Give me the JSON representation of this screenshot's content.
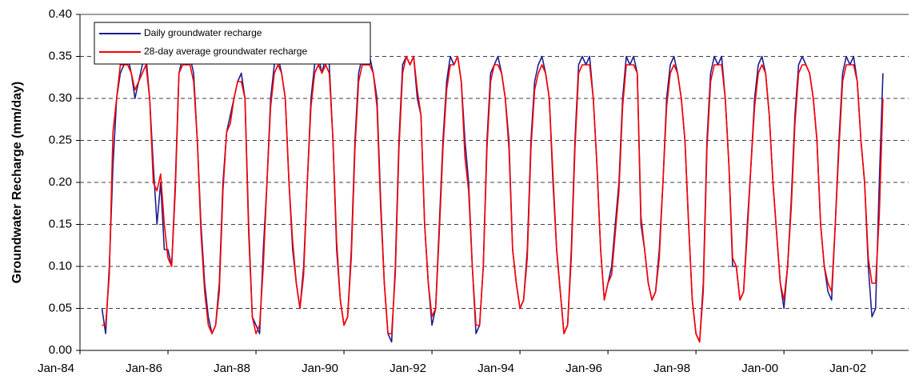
{
  "chart_data": {
    "type": "line",
    "y_label": "Groundwater Recharge (mm/day)",
    "x": [
      "1984-07",
      "1984-08",
      "1984-09",
      "1984-10",
      "1984-11",
      "1984-12",
      "1985-01",
      "1985-02",
      "1985-03",
      "1985-04",
      "1985-05",
      "1985-06",
      "1985-07",
      "1985-08",
      "1985-09",
      "1985-10",
      "1985-11",
      "1985-12",
      "1986-01",
      "1986-02",
      "1986-03",
      "1986-04",
      "1986-05",
      "1986-06",
      "1986-07",
      "1986-08",
      "1986-09",
      "1986-10",
      "1986-11",
      "1986-12",
      "1987-01",
      "1987-02",
      "1987-03",
      "1987-04",
      "1987-05",
      "1987-06",
      "1987-07",
      "1987-08",
      "1987-09",
      "1987-10",
      "1987-11",
      "1987-12",
      "1988-01",
      "1988-02",
      "1988-03",
      "1988-04",
      "1988-05",
      "1988-06",
      "1988-07",
      "1988-08",
      "1988-09",
      "1988-10",
      "1988-11",
      "1988-12",
      "1989-01",
      "1989-02",
      "1989-03",
      "1989-04",
      "1989-05",
      "1989-06",
      "1989-07",
      "1989-08",
      "1989-09",
      "1989-10",
      "1989-11",
      "1989-12",
      "1990-01",
      "1990-02",
      "1990-03",
      "1990-04",
      "1990-05",
      "1990-06",
      "1990-07",
      "1990-08",
      "1990-09",
      "1990-10",
      "1990-11",
      "1990-12",
      "1991-01",
      "1991-02",
      "1991-03",
      "1991-04",
      "1991-05",
      "1991-06",
      "1991-07",
      "1991-08",
      "1991-09",
      "1991-10",
      "1991-11",
      "1991-12",
      "1992-01",
      "1992-02",
      "1992-03",
      "1992-04",
      "1992-05",
      "1992-06",
      "1992-07",
      "1992-08",
      "1992-09",
      "1992-10",
      "1992-11",
      "1992-12",
      "1993-01",
      "1993-02",
      "1993-03",
      "1993-04",
      "1993-05",
      "1993-06",
      "1993-07",
      "1993-08",
      "1993-09",
      "1993-10",
      "1993-11",
      "1993-12",
      "1994-01",
      "1994-02",
      "1994-03",
      "1994-04",
      "1994-05",
      "1994-06",
      "1994-07",
      "1994-08",
      "1994-09",
      "1994-10",
      "1994-11",
      "1994-12",
      "1995-01",
      "1995-02",
      "1995-03",
      "1995-04",
      "1995-05",
      "1995-06",
      "1995-07",
      "1995-08",
      "1995-09",
      "1995-10",
      "1995-11",
      "1995-12",
      "1996-01",
      "1996-02",
      "1996-03",
      "1996-04",
      "1996-05",
      "1996-06",
      "1996-07",
      "1996-08",
      "1996-09",
      "1996-10",
      "1996-11",
      "1996-12",
      "1997-01",
      "1997-02",
      "1997-03",
      "1997-04",
      "1997-05",
      "1997-06",
      "1997-07",
      "1997-08",
      "1997-09",
      "1997-10",
      "1997-11",
      "1997-12",
      "1998-01",
      "1998-02",
      "1998-03",
      "1998-04",
      "1998-05",
      "1998-06",
      "1998-07",
      "1998-08",
      "1998-09",
      "1998-10",
      "1998-11",
      "1998-12",
      "1999-01",
      "1999-02",
      "1999-03",
      "1999-04",
      "1999-05",
      "1999-06",
      "1999-07",
      "1999-08",
      "1999-09",
      "1999-10",
      "1999-11",
      "1999-12",
      "2000-01",
      "2000-02",
      "2000-03",
      "2000-04",
      "2000-05",
      "2000-06",
      "2000-07",
      "2000-08",
      "2000-09",
      "2000-10",
      "2000-11",
      "2000-12",
      "2001-01",
      "2001-02",
      "2001-03",
      "2001-04",
      "2001-05",
      "2001-06",
      "2001-07",
      "2001-08",
      "2001-09",
      "2001-10",
      "2001-11",
      "2001-12",
      "2002-01",
      "2002-02",
      "2002-03",
      "2002-04"
    ],
    "series": [
      {
        "name": "Daily groundwater recharge",
        "color": "#1f1f8f",
        "values": [
          0.05,
          0.02,
          0.1,
          0.22,
          0.3,
          0.33,
          0.34,
          0.35,
          0.33,
          0.3,
          0.32,
          0.34,
          0.35,
          0.3,
          0.22,
          0.15,
          0.2,
          0.12,
          0.12,
          0.1,
          0.2,
          0.33,
          0.35,
          0.34,
          0.35,
          0.33,
          0.25,
          0.15,
          0.08,
          0.04,
          0.02,
          0.03,
          0.08,
          0.2,
          0.26,
          0.28,
          0.3,
          0.32,
          0.33,
          0.3,
          0.15,
          0.04,
          0.03,
          0.02,
          0.12,
          0.2,
          0.3,
          0.34,
          0.35,
          0.33,
          0.3,
          0.2,
          0.12,
          0.08,
          0.05,
          0.1,
          0.2,
          0.3,
          0.34,
          0.35,
          0.33,
          0.35,
          0.34,
          0.25,
          0.12,
          0.06,
          0.03,
          0.04,
          0.12,
          0.25,
          0.33,
          0.35,
          0.34,
          0.35,
          0.33,
          0.3,
          0.18,
          0.08,
          0.02,
          0.01,
          0.1,
          0.25,
          0.34,
          0.35,
          0.34,
          0.35,
          0.3,
          0.28,
          0.15,
          0.08,
          0.03,
          0.05,
          0.15,
          0.25,
          0.32,
          0.35,
          0.34,
          0.35,
          0.32,
          0.25,
          0.2,
          0.1,
          0.02,
          0.03,
          0.1,
          0.25,
          0.33,
          0.34,
          0.35,
          0.33,
          0.3,
          0.25,
          0.12,
          0.08,
          0.05,
          0.06,
          0.12,
          0.25,
          0.32,
          0.34,
          0.35,
          0.33,
          0.3,
          0.2,
          0.12,
          0.07,
          0.02,
          0.03,
          0.12,
          0.25,
          0.34,
          0.35,
          0.34,
          0.35,
          0.3,
          0.22,
          0.12,
          0.06,
          0.08,
          0.1,
          0.15,
          0.2,
          0.3,
          0.35,
          0.34,
          0.35,
          0.33,
          0.15,
          0.12,
          0.08,
          0.06,
          0.07,
          0.12,
          0.2,
          0.3,
          0.34,
          0.35,
          0.33,
          0.3,
          0.25,
          0.15,
          0.06,
          0.02,
          0.01,
          0.08,
          0.25,
          0.33,
          0.35,
          0.34,
          0.35,
          0.3,
          0.22,
          0.1,
          0.1,
          0.06,
          0.07,
          0.15,
          0.22,
          0.3,
          0.34,
          0.35,
          0.33,
          0.28,
          0.2,
          0.14,
          0.08,
          0.05,
          0.1,
          0.18,
          0.28,
          0.34,
          0.35,
          0.34,
          0.33,
          0.3,
          0.25,
          0.15,
          0.1,
          0.07,
          0.06,
          0.15,
          0.25,
          0.33,
          0.35,
          0.34,
          0.35,
          0.32,
          0.25,
          0.2,
          0.1,
          0.04,
          0.05,
          0.2,
          0.33
        ]
      },
      {
        "name": "28-day average groundwater recharge",
        "color": "#ff0000",
        "values": [
          0.03,
          0.03,
          0.09,
          0.26,
          0.3,
          0.34,
          0.34,
          0.34,
          0.33,
          0.31,
          0.32,
          0.33,
          0.34,
          0.3,
          0.2,
          0.19,
          0.21,
          0.15,
          0.11,
          0.1,
          0.19,
          0.33,
          0.34,
          0.34,
          0.34,
          0.32,
          0.25,
          0.14,
          0.07,
          0.03,
          0.02,
          0.03,
          0.07,
          0.19,
          0.26,
          0.27,
          0.3,
          0.32,
          0.32,
          0.3,
          0.14,
          0.04,
          0.02,
          0.03,
          0.1,
          0.2,
          0.29,
          0.33,
          0.34,
          0.33,
          0.3,
          0.2,
          0.13,
          0.08,
          0.05,
          0.09,
          0.2,
          0.29,
          0.33,
          0.34,
          0.33,
          0.34,
          0.33,
          0.25,
          0.13,
          0.06,
          0.03,
          0.04,
          0.11,
          0.24,
          0.32,
          0.34,
          0.34,
          0.34,
          0.33,
          0.29,
          0.17,
          0.08,
          0.02,
          0.02,
          0.09,
          0.24,
          0.33,
          0.35,
          0.34,
          0.35,
          0.31,
          0.28,
          0.15,
          0.08,
          0.04,
          0.05,
          0.14,
          0.24,
          0.31,
          0.34,
          0.34,
          0.35,
          0.32,
          0.23,
          0.19,
          0.1,
          0.03,
          0.03,
          0.1,
          0.24,
          0.32,
          0.34,
          0.34,
          0.33,
          0.3,
          0.24,
          0.12,
          0.08,
          0.05,
          0.06,
          0.11,
          0.24,
          0.31,
          0.33,
          0.34,
          0.33,
          0.3,
          0.21,
          0.12,
          0.07,
          0.02,
          0.03,
          0.11,
          0.24,
          0.33,
          0.34,
          0.34,
          0.34,
          0.3,
          0.22,
          0.12,
          0.06,
          0.08,
          0.09,
          0.14,
          0.19,
          0.29,
          0.34,
          0.34,
          0.34,
          0.33,
          0.16,
          0.12,
          0.08,
          0.06,
          0.07,
          0.11,
          0.2,
          0.29,
          0.33,
          0.34,
          0.33,
          0.3,
          0.25,
          0.15,
          0.06,
          0.02,
          0.01,
          0.07,
          0.24,
          0.32,
          0.34,
          0.34,
          0.34,
          0.3,
          0.22,
          0.11,
          0.1,
          0.06,
          0.07,
          0.14,
          0.22,
          0.29,
          0.33,
          0.34,
          0.33,
          0.28,
          0.2,
          0.14,
          0.08,
          0.06,
          0.1,
          0.17,
          0.27,
          0.33,
          0.34,
          0.34,
          0.33,
          0.3,
          0.25,
          0.15,
          0.1,
          0.08,
          0.07,
          0.15,
          0.24,
          0.32,
          0.34,
          0.34,
          0.34,
          0.32,
          0.25,
          0.2,
          0.11,
          0.08,
          0.08,
          0.16,
          0.3
        ]
      }
    ],
    "xlim": [
      "1984-01",
      "2002-11"
    ],
    "xticks": [
      {
        "value": "1984-01",
        "label": "Jan-84"
      },
      {
        "value": "1986-01",
        "label": "Jan-86"
      },
      {
        "value": "1988-01",
        "label": "Jan-88"
      },
      {
        "value": "1990-01",
        "label": "Jan-90"
      },
      {
        "value": "1992-01",
        "label": "Jan-92"
      },
      {
        "value": "1994-01",
        "label": "Jan-94"
      },
      {
        "value": "1996-01",
        "label": "Jan-96"
      },
      {
        "value": "1998-01",
        "label": "Jan-98"
      },
      {
        "value": "2000-01",
        "label": "Jan-00"
      },
      {
        "value": "2002-01",
        "label": "Jan-02"
      }
    ],
    "ylim": [
      0,
      0.4
    ],
    "yticks": [
      {
        "value": 0,
        "label": "0.00"
      },
      {
        "value": 0.05,
        "label": "0.05"
      },
      {
        "value": 0.1,
        "label": "0.10"
      },
      {
        "value": 0.15,
        "label": "0.15"
      },
      {
        "value": 0.2,
        "label": "0.20"
      },
      {
        "value": 0.25,
        "label": "0.25"
      },
      {
        "value": 0.3,
        "label": "0.30"
      },
      {
        "value": 0.35,
        "label": "0.35"
      },
      {
        "value": 0.4,
        "label": "0.40"
      }
    ],
    "grid": true,
    "legend": "top-left"
  }
}
